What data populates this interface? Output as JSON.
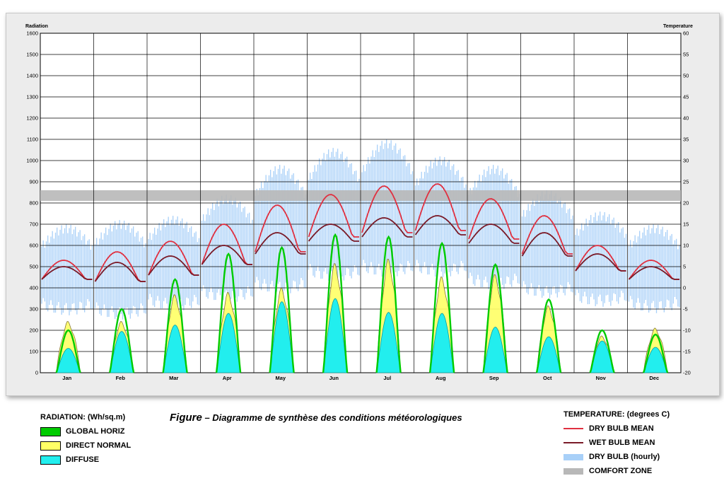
{
  "caption": {
    "figure_word": "Figure",
    "rest": " – Diagramme de synthèse des conditions météorologiques"
  },
  "colors": {
    "global_horiz": "#00cc00",
    "direct_normal": "#ffff66",
    "diffuse": "#22eeee",
    "dry_bulb_mean": "#e03040",
    "wet_bulb_mean": "#7a1a28",
    "dry_bulb_hourly": "#a8d0f8",
    "comfort_zone": "#b8b8b8"
  },
  "chart_data": {
    "type": "area",
    "left_axis": {
      "title": "Radiation",
      "range": [
        0,
        1600
      ],
      "ticks": [
        0,
        100,
        200,
        300,
        400,
        500,
        600,
        700,
        800,
        900,
        1000,
        1100,
        1200,
        1300,
        1400,
        1500,
        1600
      ]
    },
    "right_axis": {
      "title": "Temperature",
      "range": [
        -20,
        60
      ],
      "ticks": [
        -20,
        -15,
        -10,
        -5,
        0,
        5,
        10,
        15,
        20,
        25,
        30,
        35,
        40,
        45,
        50,
        55,
        60
      ]
    },
    "months": [
      "Jan",
      "Feb",
      "Mar",
      "Apr",
      "May",
      "Jun",
      "Jul",
      "Aug",
      "Sep",
      "Oct",
      "Nov",
      "Dec"
    ],
    "grid": true,
    "comfort_zone": [
      20.5,
      23
    ],
    "series": [
      {
        "name": "GLOBAL HORIZ",
        "units": "Wh/sq.m",
        "peak_by_month": [
          200,
          300,
          440,
          560,
          590,
          650,
          640,
          610,
          510,
          345,
          200,
          180
        ]
      },
      {
        "name": "DIRECT NORMAL",
        "units": "Wh/sq.m",
        "peak_by_month": [
          230,
          230,
          350,
          360,
          380,
          490,
          510,
          430,
          440,
          300,
          165,
          200
        ]
      },
      {
        "name": "DIFFUSE",
        "units": "Wh/sq.m",
        "peak_by_month": [
          115,
          195,
          225,
          280,
          335,
          350,
          285,
          280,
          215,
          170,
          150,
          120
        ]
      },
      {
        "name": "DRY BULB MEAN",
        "units": "degrees C",
        "min_by_month": [
          2,
          1.5,
          3,
          5.5,
          8.5,
          12,
          13,
          13.5,
          11.5,
          8,
          4,
          2
        ],
        "max_by_month": [
          6.5,
          8.5,
          11,
          15,
          19.5,
          22,
          24,
          24.5,
          21,
          17,
          10,
          6.5
        ]
      },
      {
        "name": "WET BULB MEAN",
        "units": "degrees C",
        "min_by_month": [
          2,
          1.5,
          3,
          5.5,
          8,
          11,
          12,
          12.5,
          10.5,
          7.5,
          4,
          2
        ],
        "max_by_month": [
          5,
          6,
          7.5,
          10,
          13,
          15,
          16.5,
          17,
          15,
          13,
          8,
          5
        ]
      },
      {
        "name": "DRY BULB (hourly)",
        "units": "degrees C",
        "min_by_month": [
          -5,
          -6,
          -4,
          -2,
          0,
          3,
          4,
          4,
          1,
          -1,
          -3,
          -4.5
        ],
        "max_by_month": [
          14,
          15,
          16,
          21,
          28,
          32,
          34,
          30,
          28,
          22,
          17,
          14
        ]
      }
    ]
  },
  "legend_radiation": {
    "title": "RADIATION: (Wh/sq.m)",
    "items": [
      "GLOBAL HORIZ",
      "DIRECT NORMAL",
      "DIFFUSE"
    ]
  },
  "legend_temperature": {
    "title": "TEMPERATURE: (degrees C)",
    "items": [
      "DRY BULB MEAN",
      "WET BULB MEAN",
      "DRY BULB (hourly)",
      "COMFORT ZONE"
    ]
  }
}
